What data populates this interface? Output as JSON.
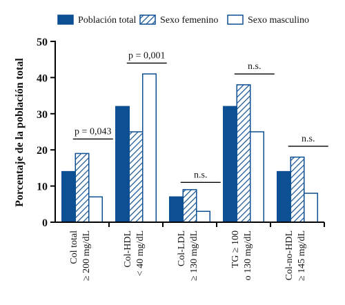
{
  "chart_data": {
    "type": "bar",
    "ylabel": "Porcentaje de la población total",
    "ylim": [
      0,
      50
    ],
    "yticks": [
      0,
      10,
      20,
      30,
      40,
      50
    ],
    "categories": [
      [
        "Col total",
        "≥ 200 mg/dL"
      ],
      [
        "Col-HDL",
        "< 40 mg/dL"
      ],
      [
        "Col-LDL",
        "≥ 130 mg/dL"
      ],
      [
        "TG ≥ 100",
        "o 130 mg/dL"
      ],
      [
        "Col-no-HDL",
        "≥ 145  mg/dL"
      ]
    ],
    "series": [
      {
        "name": "Población total",
        "values": [
          14,
          32,
          7,
          32,
          14
        ],
        "style": "solid",
        "color": "#0d4f93"
      },
      {
        "name": "Sexo femenino",
        "values": [
          19,
          25,
          9,
          38,
          18
        ],
        "style": "hatched",
        "color": "#0d4f93"
      },
      {
        "name": "Sexo masculino",
        "values": [
          7,
          41,
          3,
          25,
          8
        ],
        "style": "open",
        "color": "#0d4f93"
      }
    ],
    "annotations": [
      "p = 0,043",
      "p = 0,001",
      "n.s.",
      "n.s.",
      "n.s."
    ],
    "annotation_levels": [
      23,
      44,
      11,
      41,
      21
    ],
    "legend_position": "top",
    "grid": false
  }
}
